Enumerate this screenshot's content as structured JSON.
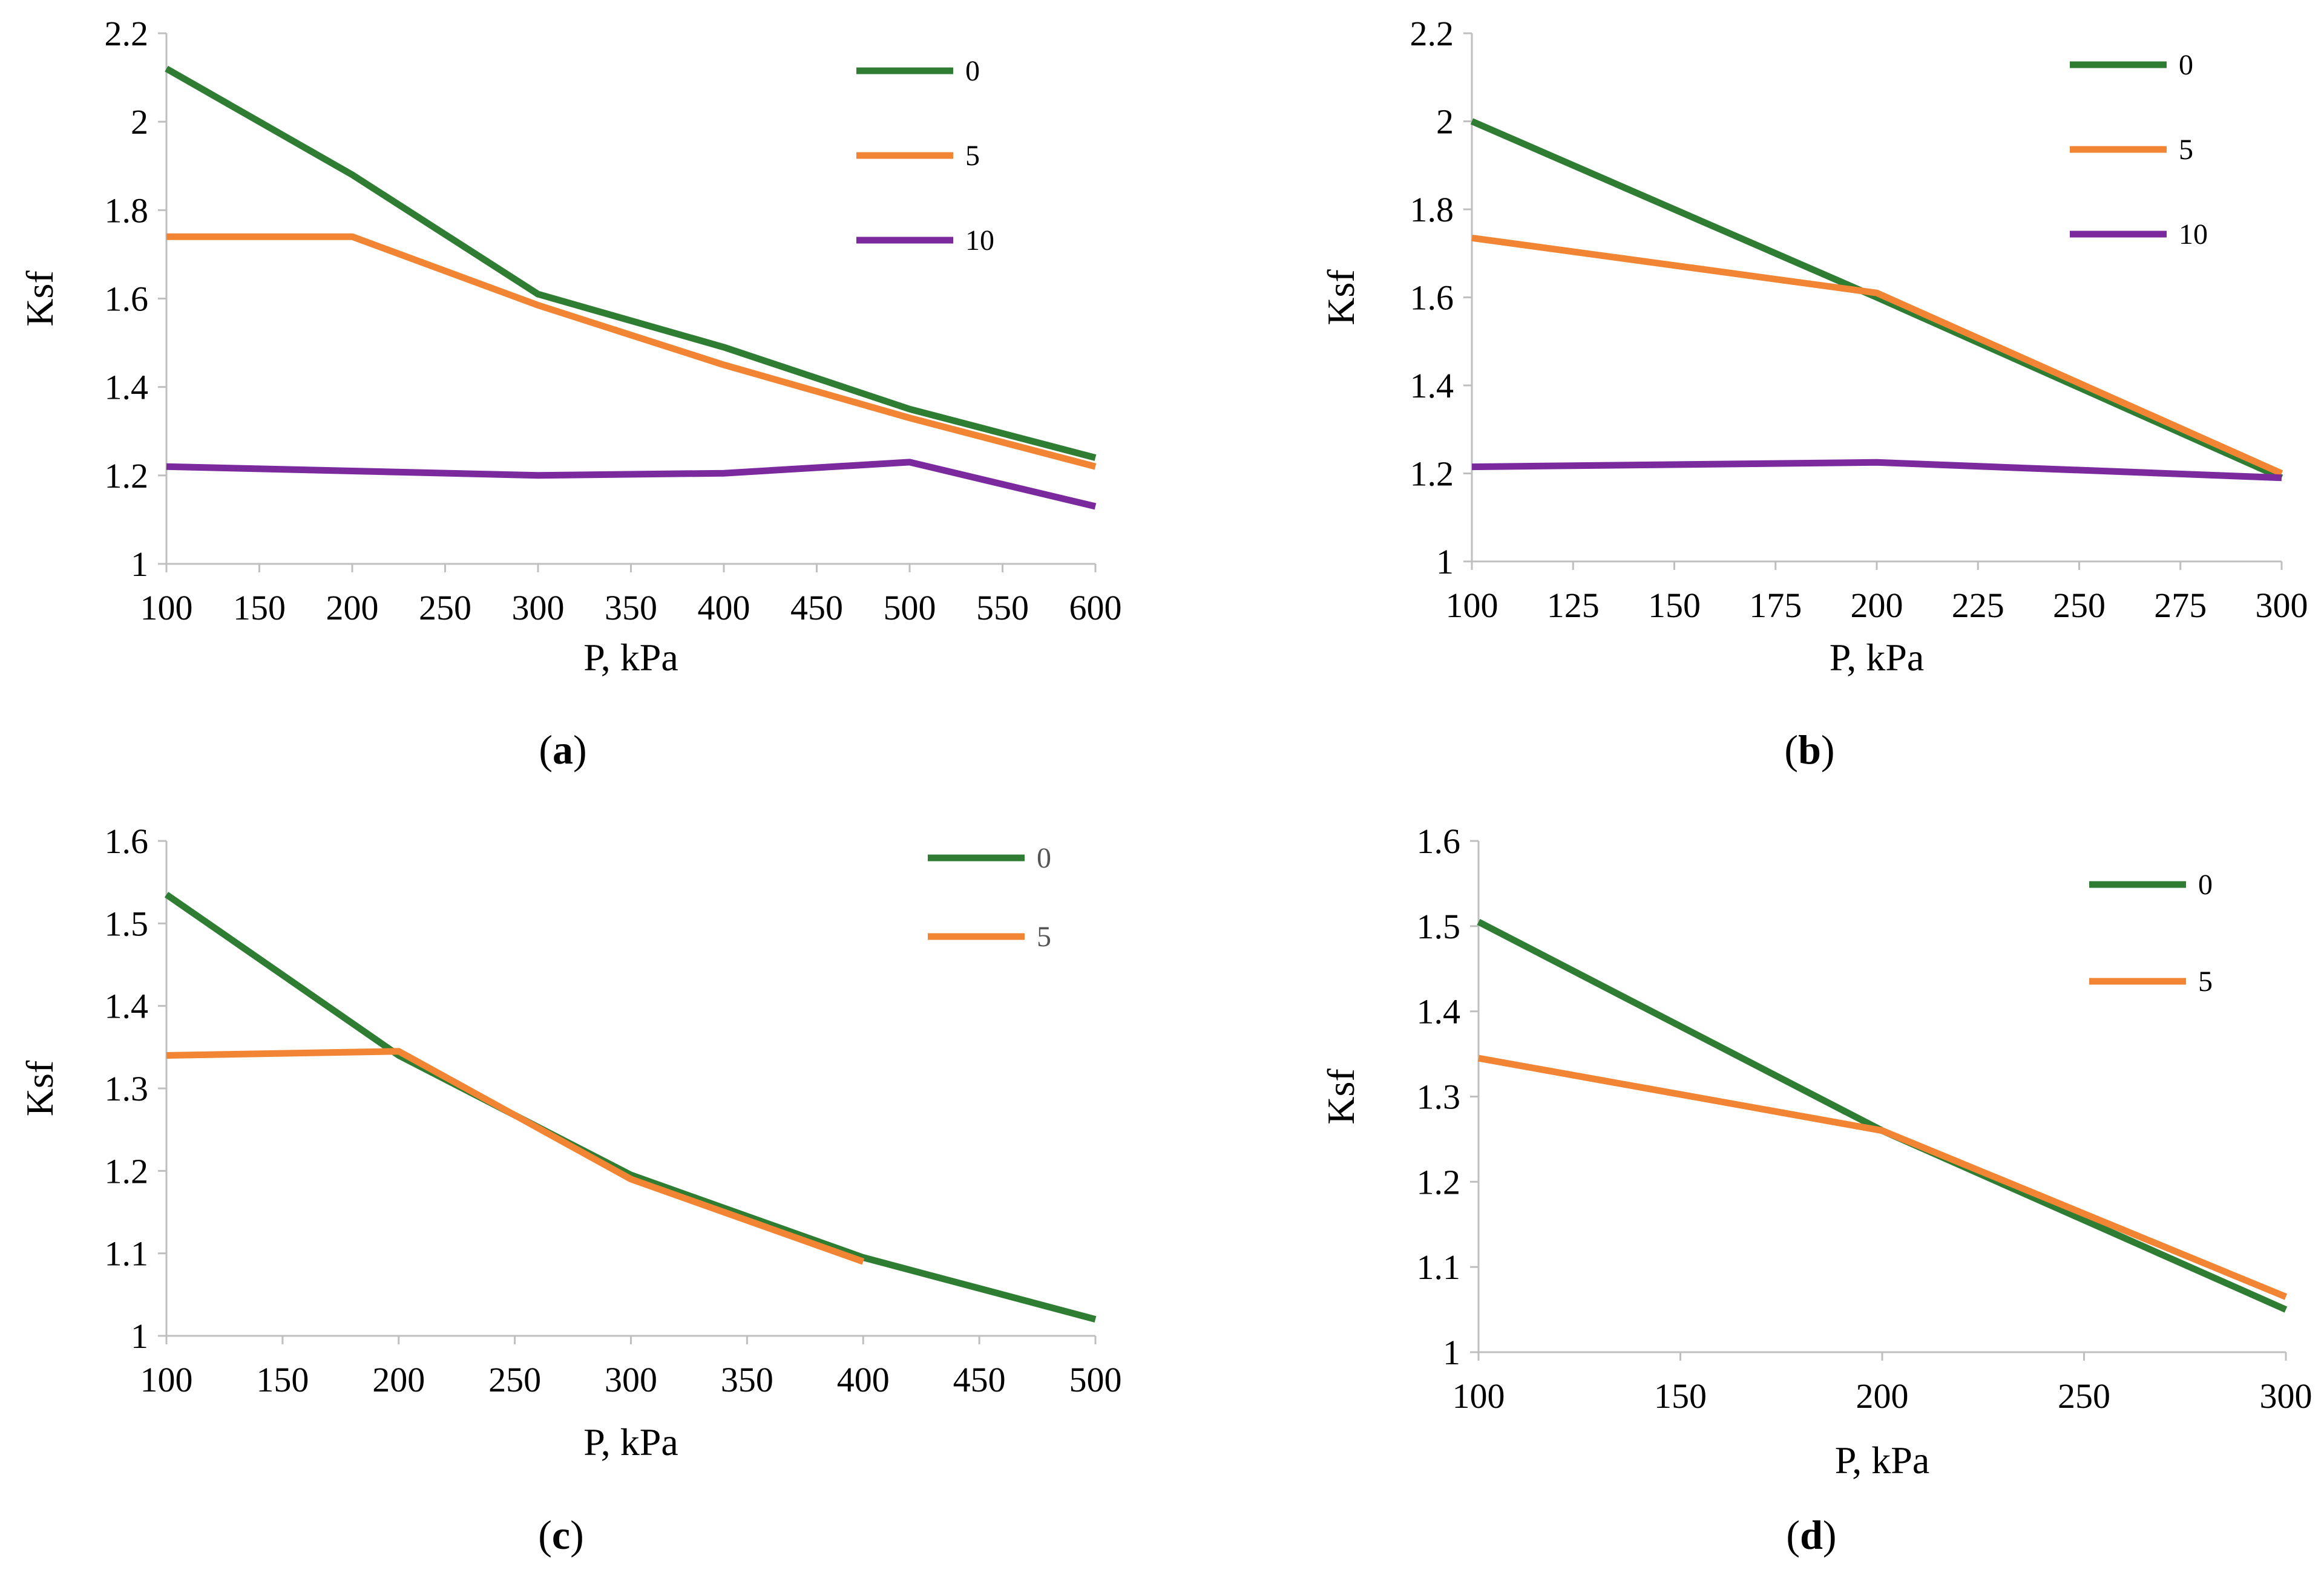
{
  "colors": {
    "s0": "#2E7D32",
    "s5": "#F28533",
    "s10": "#7B2A9E",
    "axis": "#BFBFBF"
  },
  "chart_data": [
    {
      "type": "line",
      "panel_label": "a",
      "xlabel": "P, kPa",
      "ylabel": "Ksf",
      "xlim": [
        100,
        600
      ],
      "ylim": [
        1,
        2.2
      ],
      "xticks": [
        100,
        150,
        200,
        250,
        300,
        350,
        400,
        450,
        500,
        550,
        600
      ],
      "yticks": [
        1,
        1.2,
        1.4,
        1.6,
        1.8,
        2,
        2.2
      ],
      "legend_position": "top-right",
      "series": [
        {
          "name": "0",
          "color": "#2E7D32",
          "x": [
            100,
            200,
            300,
            400,
            500,
            600
          ],
          "values": [
            2.12,
            1.88,
            1.61,
            1.49,
            1.35,
            1.24
          ]
        },
        {
          "name": "5",
          "color": "#F28533",
          "x": [
            100,
            200,
            300,
            400,
            500,
            600
          ],
          "values": [
            1.74,
            1.74,
            1.585,
            1.45,
            1.33,
            1.22
          ]
        },
        {
          "name": "10",
          "color": "#7B2A9E",
          "x": [
            100,
            200,
            300,
            400,
            500,
            600
          ],
          "values": [
            1.22,
            1.21,
            1.2,
            1.205,
            1.23,
            1.13
          ]
        }
      ]
    },
    {
      "type": "line",
      "panel_label": "b",
      "xlabel": "P, kPa",
      "ylabel": "Ksf",
      "xlim": [
        100,
        300
      ],
      "ylim": [
        1,
        2.2
      ],
      "xticks": [
        100,
        125,
        150,
        175,
        200,
        225,
        250,
        275,
        300
      ],
      "yticks": [
        1,
        1.2,
        1.4,
        1.6,
        1.8,
        2,
        2.2
      ],
      "legend_position": "top-right",
      "series": [
        {
          "name": "0",
          "color": "#2E7D32",
          "x": [
            100,
            200,
            300
          ],
          "values": [
            2.0,
            1.6,
            1.19
          ]
        },
        {
          "name": "5",
          "color": "#F28533",
          "x": [
            100,
            200,
            300
          ],
          "values": [
            1.735,
            1.61,
            1.2
          ]
        },
        {
          "name": "10",
          "color": "#7B2A9E",
          "x": [
            100,
            200,
            300
          ],
          "values": [
            1.215,
            1.225,
            1.19
          ]
        }
      ]
    },
    {
      "type": "line",
      "panel_label": "c",
      "xlabel": "P, kPa",
      "ylabel": "Ksf",
      "xlim": [
        100,
        500
      ],
      "ylim": [
        1,
        1.6
      ],
      "xticks": [
        100,
        150,
        200,
        250,
        300,
        350,
        400,
        450,
        500
      ],
      "yticks": [
        1,
        1.1,
        1.2,
        1.3,
        1.4,
        1.5,
        1.6
      ],
      "legend_position": "top-right",
      "series": [
        {
          "name": "0",
          "color": "#2E7D32",
          "x": [
            100,
            200,
            300,
            400,
            500
          ],
          "values": [
            1.535,
            1.34,
            1.195,
            1.095,
            1.02
          ]
        },
        {
          "name": "5",
          "color": "#F28533",
          "x": [
            100,
            200,
            300,
            400
          ],
          "values": [
            1.34,
            1.345,
            1.19,
            1.09
          ]
        }
      ]
    },
    {
      "type": "line",
      "panel_label": "d",
      "xlabel": "P, kPa",
      "ylabel": "Ksf",
      "xlim": [
        100,
        300
      ],
      "ylim": [
        1,
        1.6
      ],
      "xticks": [
        100,
        150,
        200,
        250,
        300
      ],
      "yticks": [
        1,
        1.1,
        1.2,
        1.3,
        1.4,
        1.5,
        1.6
      ],
      "legend_position": "top-right",
      "series": [
        {
          "name": "0",
          "color": "#2E7D32",
          "x": [
            100,
            200,
            300
          ],
          "values": [
            1.505,
            1.26,
            1.05
          ]
        },
        {
          "name": "5",
          "color": "#F28533",
          "x": [
            100,
            200,
            300
          ],
          "values": [
            1.345,
            1.26,
            1.065
          ]
        }
      ]
    }
  ]
}
